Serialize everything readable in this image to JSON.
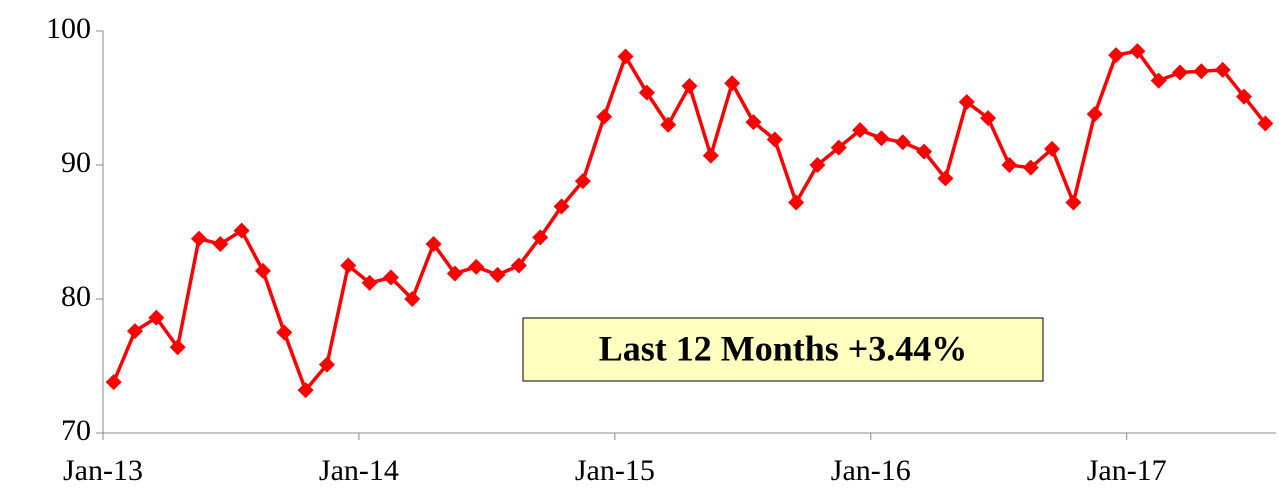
{
  "chart_data": {
    "type": "line",
    "categories": [
      "Jan-13",
      null,
      null,
      null,
      null,
      null,
      null,
      null,
      null,
      null,
      null,
      null,
      "Jan-14",
      null,
      null,
      null,
      null,
      null,
      null,
      null,
      null,
      null,
      null,
      null,
      "Jan-15",
      null,
      null,
      null,
      null,
      null,
      null,
      null,
      null,
      null,
      null,
      null,
      "Jan-16",
      null,
      null,
      null,
      null,
      null,
      null,
      null,
      null,
      null,
      null,
      null,
      "Jan-17",
      null,
      null,
      null,
      null,
      null,
      null
    ],
    "series": [
      {
        "color": "#ff0000",
        "values": [
          73.8,
          77.6,
          78.6,
          76.4,
          84.5,
          84.1,
          85.1,
          82.1,
          77.5,
          73.2,
          75.1,
          82.5,
          81.2,
          81.6,
          80.0,
          84.1,
          81.9,
          82.4,
          81.8,
          82.5,
          84.6,
          86.9,
          88.8,
          93.6,
          98.1,
          95.4,
          93.0,
          95.9,
          90.7,
          96.1,
          93.2,
          91.9,
          87.2,
          90.0,
          91.3,
          92.6,
          92.0,
          91.7,
          91.0,
          89.0,
          94.7,
          93.5,
          90.0,
          89.8,
          91.2,
          87.2,
          93.8,
          98.2,
          98.5,
          96.3,
          96.9,
          97.0,
          97.1,
          95.1,
          93.1
        ]
      }
    ],
    "ylim": [
      70,
      100
    ],
    "yticks": [
      70,
      80,
      90,
      100
    ],
    "grid": false,
    "annotation": "Last 12 Months +3.44%"
  }
}
